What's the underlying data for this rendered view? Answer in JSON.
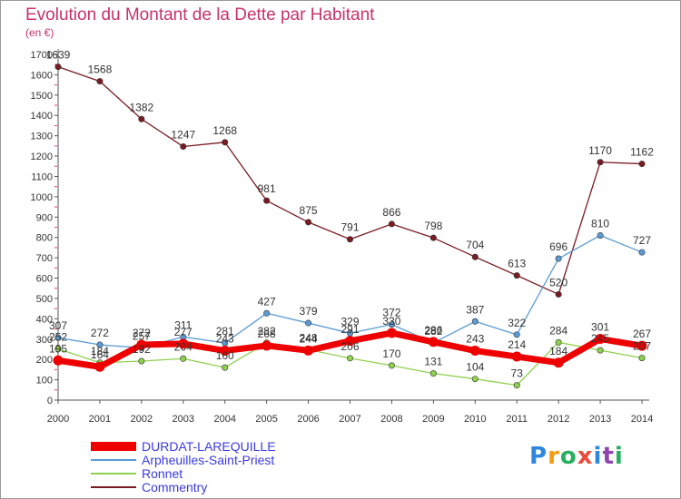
{
  "chart_data": {
    "type": "line",
    "title": "Evolution du Montant de la Dette par Habitant",
    "subtitle": "(en €)",
    "x": [
      2000,
      2001,
      2002,
      2003,
      2004,
      2005,
      2006,
      2007,
      2008,
      2009,
      2010,
      2011,
      2012,
      2013,
      2014
    ],
    "ylim": [
      0,
      1700
    ],
    "yticks": [
      0,
      100,
      200,
      300,
      400,
      500,
      600,
      700,
      800,
      900,
      1000,
      1100,
      1200,
      1300,
      1400,
      1500,
      1600,
      1700
    ],
    "grid": false,
    "legend_position": "bottom-left",
    "series": [
      {
        "name": "Commentry",
        "color": "#7a1a22",
        "values": [
          1639,
          1568,
          1382,
          1247,
          1268,
          981,
          875,
          791,
          866,
          798,
          704,
          613,
          520,
          1170,
          1162
        ],
        "labels": [
          "1639",
          "1568",
          "1382",
          "1247",
          "1268",
          "981",
          "875",
          "791",
          "866",
          "798",
          "704",
          "613",
          "520",
          "1170",
          "1162"
        ]
      },
      {
        "name": "Arpheuilles-Saint-Priest",
        "color": "#5b9bd5",
        "values": [
          307,
          272,
          257,
          311,
          281,
          427,
          379,
          329,
          372,
          282,
          387,
          322,
          696,
          810,
          727
        ],
        "labels": [
          "307",
          "272",
          "257",
          "311",
          "281",
          "427",
          "379",
          "329",
          "372",
          "282",
          "387",
          "322",
          "696",
          "810",
          "727"
        ]
      },
      {
        "name": "Ronnet",
        "color": "#8fd14f",
        "values": [
          252,
          184,
          192,
          204,
          160,
          282,
          248,
          206,
          170,
          131,
          104,
          73,
          284,
          245,
          207
        ],
        "labels": [
          "252",
          "184",
          "192",
          "204",
          "160",
          "282",
          "248",
          "206",
          "170",
          "131",
          "104",
          "73",
          "284",
          "245",
          "207"
        ]
      },
      {
        "name": "DURDAT-LAREQUILLE",
        "color": "#ee0000",
        "values": [
          195,
          164,
          272,
          277,
          243,
          268,
          244,
          291,
          330,
          286,
          243,
          214,
          184,
          301,
          267
        ],
        "labels": [
          "195",
          "164",
          "272",
          "277",
          "243",
          "268",
          "244",
          "291",
          "330",
          "286",
          "243",
          "214",
          "184",
          "301",
          "267"
        ]
      }
    ]
  },
  "legend": [
    {
      "name": "DURDAT-LAREQUILLE",
      "color": "#ee0000"
    },
    {
      "name": "Arpheuilles-Saint-Priest",
      "color": "#5b9bd5"
    },
    {
      "name": "Ronnet",
      "color": "#8fd14f"
    },
    {
      "name": "Commentry",
      "color": "#7a1a22"
    }
  ],
  "logo": {
    "letters": [
      "P",
      "r",
      "o",
      "x",
      "i",
      "t",
      "i"
    ],
    "colors": [
      "#2e86de",
      "#f39c12",
      "#27ae60",
      "#e74c3c",
      "#2e86de",
      "#8e44ad",
      "#27ae60"
    ]
  }
}
